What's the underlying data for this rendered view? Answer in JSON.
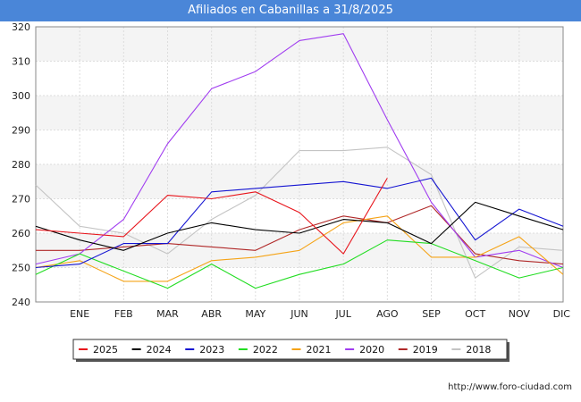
{
  "header": {
    "title": "Afiliados en Cabanillas a 31/8/2025"
  },
  "footer": {
    "source_url": "http://www.foro-ciudad.com"
  },
  "chart_data": {
    "type": "line",
    "title": "Afiliados en Cabanillas a 31/8/2025",
    "categories": [
      "",
      "ENE",
      "FEB",
      "MAR",
      "ABR",
      "MAY",
      "JUN",
      "JUL",
      "AGO",
      "SEP",
      "OCT",
      "NOV",
      "DIC"
    ],
    "ylim": [
      240,
      320
    ],
    "yticks": [
      240,
      250,
      260,
      270,
      280,
      290,
      300,
      310,
      320
    ],
    "grid": true,
    "legend_position": "bottom",
    "series": [
      {
        "name": "2025",
        "color": "#e8141b",
        "values": [
          261,
          260,
          259,
          271,
          270,
          272,
          266,
          254,
          276,
          null,
          null,
          null,
          null
        ]
      },
      {
        "name": "2024",
        "color": "#000000",
        "values": [
          262,
          258,
          255,
          260,
          263,
          261,
          260,
          264,
          263,
          257,
          269,
          265,
          261
        ]
      },
      {
        "name": "2023",
        "color": "#1414d2",
        "values": [
          250,
          251,
          257,
          257,
          272,
          273,
          274,
          275,
          273,
          276,
          258,
          267,
          262
        ]
      },
      {
        "name": "2022",
        "color": "#22dd22",
        "values": [
          248,
          254,
          249,
          244,
          251,
          244,
          248,
          251,
          258,
          257,
          252,
          247,
          250
        ]
      },
      {
        "name": "2021",
        "color": "#f5a316",
        "values": [
          250,
          252,
          246,
          246,
          252,
          253,
          255,
          263,
          265,
          253,
          253,
          259,
          248
        ]
      },
      {
        "name": "2020",
        "color": "#a03cf0",
        "values": [
          251,
          254,
          264,
          286,
          302,
          307,
          316,
          318,
          293,
          269,
          253,
          255,
          250
        ]
      },
      {
        "name": "2019",
        "color": "#b02828",
        "values": [
          255,
          255,
          256,
          257,
          256,
          255,
          261,
          265,
          263,
          268,
          254,
          252,
          251
        ]
      },
      {
        "name": "2018",
        "color": "#c4c4c4",
        "values": [
          274,
          262,
          260,
          254,
          264,
          271,
          284,
          284,
          285,
          277,
          247,
          256,
          255
        ]
      }
    ]
  }
}
